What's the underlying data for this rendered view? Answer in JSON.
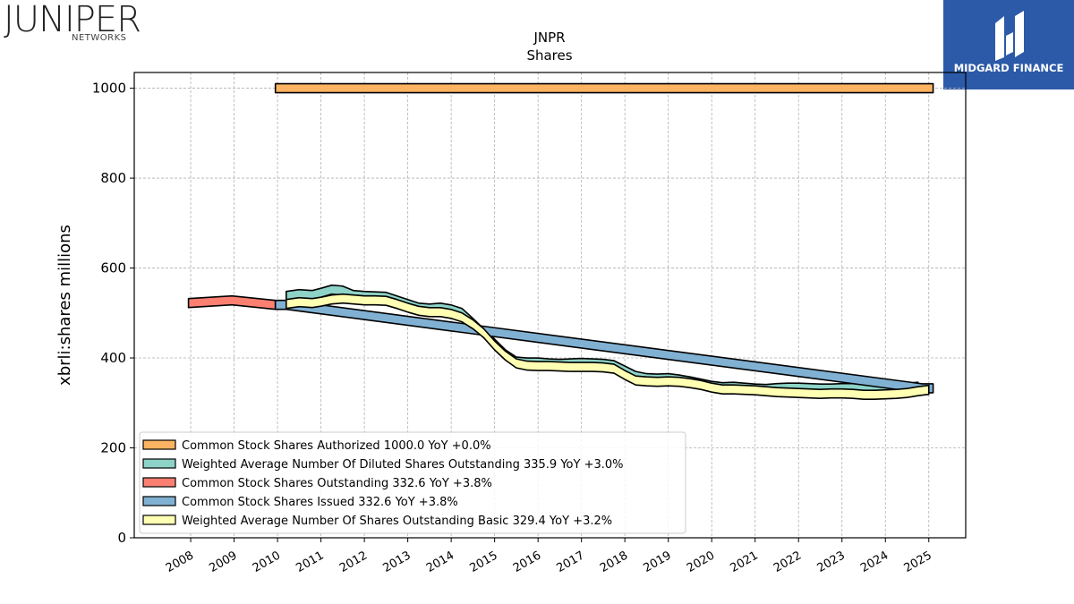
{
  "brand": {
    "left_name": "JUNIPER",
    "left_sub": "NETWORKS",
    "right_name": "MIDGARD FINANCE"
  },
  "chart_data": {
    "type": "area",
    "title": "JNPR",
    "subtitle": "Shares",
    "ylabel": "xbrli:shares millions",
    "xlabel": "",
    "ylim": [
      0,
      1035
    ],
    "xlim": [
      2006.7,
      2025.85
    ],
    "y_ticks": [
      0,
      200,
      400,
      600,
      800,
      1000
    ],
    "x_ticks": [
      "2008",
      "2009",
      "2010",
      "2011",
      "2012",
      "2013",
      "2014",
      "2015",
      "2016",
      "2017",
      "2018",
      "2019",
      "2020",
      "2021",
      "2022",
      "2023",
      "2024",
      "2025"
    ],
    "grid": true,
    "legend_position": "lower-left",
    "series": [
      {
        "name": "Common Stock Shares Authorized",
        "legend": "Common Stock Shares Authorized  1000.0 YoY +0.0%",
        "color": "#fdb462",
        "x": [
          2009.95,
          2025.1
        ],
        "y": [
          1000,
          1000
        ]
      },
      {
        "name": "Weighted Average Number Of Diluted Shares Outstanding",
        "legend": "Weighted Average Number Of Diluted Shares Outstanding  335.9 YoY +3.0%",
        "color": "#8dd3c7",
        "x": [
          2010.2,
          2010.5,
          2010.8,
          2011.0,
          2011.25,
          2011.5,
          2011.75,
          2012.0,
          2012.25,
          2012.5,
          2012.75,
          2013.0,
          2013.25,
          2013.5,
          2013.75,
          2014.0,
          2014.25,
          2014.5,
          2014.75,
          2015.0,
          2015.25,
          2015.5,
          2015.75,
          2016.0,
          2016.25,
          2016.5,
          2016.75,
          2017.0,
          2017.25,
          2017.5,
          2017.75,
          2018.0,
          2018.25,
          2018.5,
          2018.75,
          2019.0,
          2019.25,
          2019.5,
          2019.75,
          2020.0,
          2020.25,
          2020.5,
          2020.75,
          2021.0,
          2021.25,
          2021.5,
          2021.75,
          2022.0,
          2022.25,
          2022.5,
          2022.75,
          2023.0,
          2023.25,
          2023.5,
          2023.75,
          2024.0,
          2024.25,
          2024.5,
          2024.75
        ],
        "y": [
          538,
          542,
          540,
          545,
          552,
          550,
          540,
          538,
          537,
          536,
          528,
          520,
          512,
          510,
          512,
          508,
          500,
          478,
          455,
          432,
          408,
          392,
          390,
          390,
          388,
          387,
          388,
          389,
          388,
          387,
          384,
          372,
          360,
          355,
          354,
          355,
          352,
          348,
          343,
          338,
          335,
          336,
          334,
          332,
          331,
          333,
          334,
          334,
          333,
          332,
          332,
          333,
          333,
          331,
          330,
          329,
          330,
          334,
          336
        ]
      },
      {
        "name": "Common Stock Shares Outstanding",
        "legend": "Common Stock Shares Outstanding  332.6 YoY +3.8%",
        "color": "#fb8072",
        "x": [
          2007.95,
          2008.95,
          2009.95
        ],
        "y": [
          522,
          528,
          518
        ]
      },
      {
        "name": "Common Stock Shares Issued",
        "legend": "Common Stock Shares Issued  332.6 YoY +3.8%",
        "color": "#80b1d3",
        "x": [
          2009.95,
          2010.2,
          2024.85,
          2025.1
        ],
        "y": [
          518,
          518,
          332.6,
          332.6
        ]
      },
      {
        "name": "Weighted Average Number Of Shares Outstanding Basic",
        "legend": "Weighted Average Number Of Shares Outstanding Basic  329.4 YoY +3.2%",
        "color": "#ffffb3",
        "x": [
          2010.2,
          2010.5,
          2010.8,
          2011.0,
          2011.25,
          2011.5,
          2011.75,
          2012.0,
          2012.25,
          2012.5,
          2012.75,
          2013.0,
          2013.25,
          2013.5,
          2013.75,
          2014.0,
          2014.25,
          2014.5,
          2014.75,
          2015.0,
          2015.25,
          2015.5,
          2015.75,
          2016.0,
          2016.25,
          2016.5,
          2016.75,
          2017.0,
          2017.25,
          2017.5,
          2017.75,
          2018.0,
          2018.25,
          2018.5,
          2018.75,
          2019.0,
          2019.25,
          2019.5,
          2019.75,
          2020.0,
          2020.25,
          2020.5,
          2020.75,
          2021.0,
          2021.25,
          2021.5,
          2021.75,
          2022.0,
          2022.25,
          2022.5,
          2022.75,
          2023.0,
          2023.25,
          2023.5,
          2023.75,
          2024.0,
          2024.25,
          2024.5,
          2024.75,
          2025.0
        ],
        "y": [
          520,
          524,
          522,
          525,
          530,
          532,
          530,
          528,
          528,
          527,
          520,
          512,
          505,
          502,
          502,
          498,
          490,
          475,
          455,
          428,
          405,
          388,
          383,
          382,
          382,
          381,
          380,
          380,
          380,
          379,
          376,
          362,
          350,
          348,
          347,
          348,
          347,
          344,
          340,
          334,
          330,
          330,
          329,
          328,
          326,
          324,
          323,
          322,
          321,
          320,
          321,
          321,
          320,
          318,
          318,
          319,
          320,
          322,
          326,
          329
        ]
      }
    ]
  }
}
